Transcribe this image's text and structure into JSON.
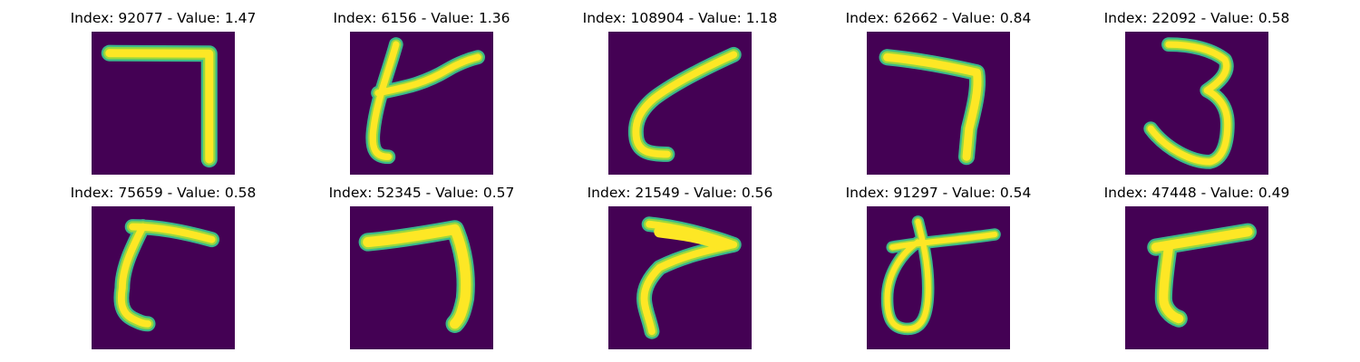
{
  "figure": {
    "background_color": "#ffffff",
    "colormap": "viridis",
    "image_background_color": "#440154",
    "stroke_color": "#fde725",
    "panels": [
      {
        "index": "92077",
        "value": "1.47",
        "title": "Index: 92077 - Value: 1.47",
        "glyph": "seven"
      },
      {
        "index": "6156",
        "value": "1.36",
        "title": "Index: 6156 - Value: 1.36",
        "glyph": "crossed-stroke"
      },
      {
        "index": "108904",
        "value": "1.18",
        "title": "Index: 108904 - Value: 1.18",
        "glyph": "open-curve"
      },
      {
        "index": "62662",
        "value": "0.84",
        "title": "Index: 62662 - Value: 0.84",
        "glyph": "seven"
      },
      {
        "index": "22092",
        "value": "0.58",
        "title": "Index: 22092 - Value: 0.58",
        "glyph": "three"
      },
      {
        "index": "75659",
        "value": "0.58",
        "title": "Index: 75659 - Value: 0.58",
        "glyph": "open-curve"
      },
      {
        "index": "52345",
        "value": "0.57",
        "title": "Index: 52345 - Value: 0.57",
        "glyph": "seven"
      },
      {
        "index": "21549",
        "value": "0.56",
        "title": "Index: 21549 - Value: 0.56",
        "glyph": "open-curve"
      },
      {
        "index": "91297",
        "value": "0.54",
        "title": "Index: 91297 - Value: 0.54",
        "glyph": "loop"
      },
      {
        "index": "47448",
        "value": "0.49",
        "title": "Index: 47448 - Value: 0.49",
        "glyph": "open-curve"
      }
    ]
  }
}
